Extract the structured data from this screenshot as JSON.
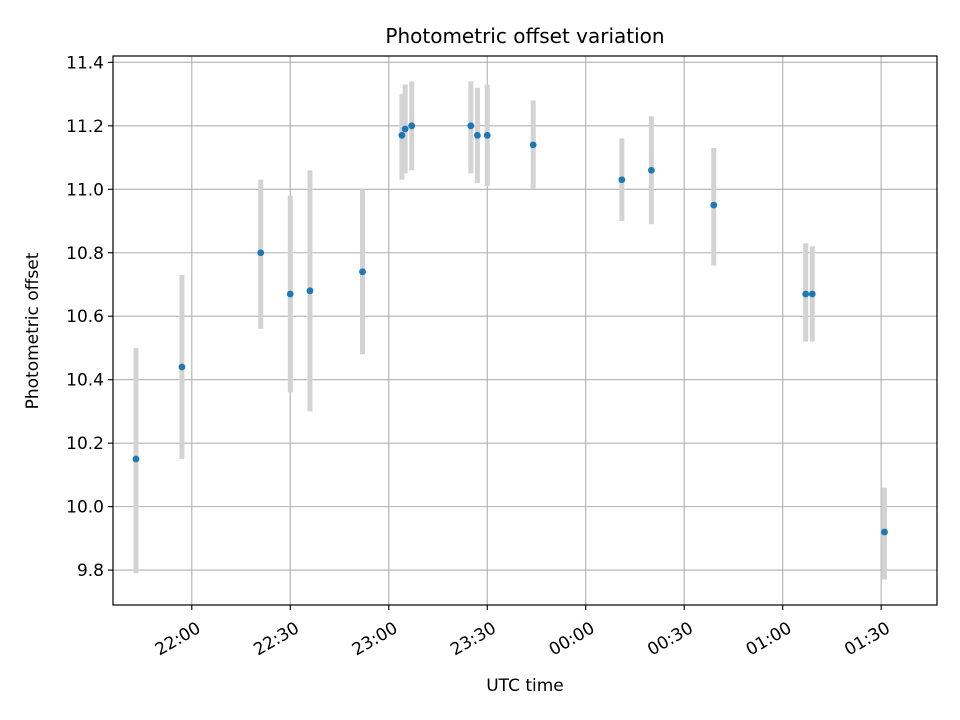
{
  "chart_data": {
    "type": "scatter",
    "title": "Photometric offset variation",
    "xlabel": "UTC time",
    "ylabel": "Photometric offset",
    "x_is_time": true,
    "x_unit": "minutes after 00:00 UTC of the first night",
    "xlim": [
      "21:36",
      "01:47"
    ],
    "ylim": [
      9.69,
      11.42
    ],
    "grid": true,
    "x_ticks": [
      {
        "label": "22:00",
        "minute": 1320
      },
      {
        "label": "22:30",
        "minute": 1350
      },
      {
        "label": "23:00",
        "minute": 1380
      },
      {
        "label": "23:30",
        "minute": 1410
      },
      {
        "label": "00:00",
        "minute": 1440
      },
      {
        "label": "00:30",
        "minute": 1470
      },
      {
        "label": "01:00",
        "minute": 1500
      },
      {
        "label": "01:30",
        "minute": 1530
      }
    ],
    "y_ticks": [
      "9.8",
      "10.0",
      "10.2",
      "10.4",
      "10.6",
      "10.8",
      "11.0",
      "11.2",
      "11.4"
    ],
    "colors": {
      "points": "#1f77b4",
      "errorbars": "#d3d3d3"
    },
    "points": [
      {
        "time": "21:43",
        "y": 10.15,
        "lo": 9.79,
        "hi": 10.5
      },
      {
        "time": "21:57",
        "y": 10.44,
        "lo": 10.15,
        "hi": 10.73
      },
      {
        "time": "22:21",
        "y": 10.8,
        "lo": 10.56,
        "hi": 11.03
      },
      {
        "time": "22:30",
        "y": 10.67,
        "lo": 10.36,
        "hi": 10.98
      },
      {
        "time": "22:36",
        "y": 10.68,
        "lo": 10.3,
        "hi": 11.06
      },
      {
        "time": "22:52",
        "y": 10.74,
        "lo": 10.48,
        "hi": 11.0
      },
      {
        "time": "23:04",
        "y": 11.17,
        "lo": 11.03,
        "hi": 11.3
      },
      {
        "time": "23:05",
        "y": 11.19,
        "lo": 11.05,
        "hi": 11.33
      },
      {
        "time": "23:07",
        "y": 11.2,
        "lo": 11.06,
        "hi": 11.34
      },
      {
        "time": "23:25",
        "y": 11.2,
        "lo": 11.05,
        "hi": 11.34
      },
      {
        "time": "23:27",
        "y": 11.17,
        "lo": 11.02,
        "hi": 11.32
      },
      {
        "time": "23:30",
        "y": 11.17,
        "lo": 11.01,
        "hi": 11.33
      },
      {
        "time": "23:44",
        "y": 11.14,
        "lo": 11.0,
        "hi": 11.28
      },
      {
        "time": "00:11",
        "y": 11.03,
        "lo": 10.9,
        "hi": 11.16
      },
      {
        "time": "00:20",
        "y": 11.06,
        "lo": 10.89,
        "hi": 11.23
      },
      {
        "time": "00:39",
        "y": 10.95,
        "lo": 10.76,
        "hi": 11.13
      },
      {
        "time": "01:07",
        "y": 10.67,
        "lo": 10.52,
        "hi": 10.83
      },
      {
        "time": "01:09",
        "y": 10.67,
        "lo": 10.52,
        "hi": 10.82
      },
      {
        "time": "01:31",
        "y": 9.92,
        "lo": 9.77,
        "hi": 10.06
      }
    ]
  }
}
